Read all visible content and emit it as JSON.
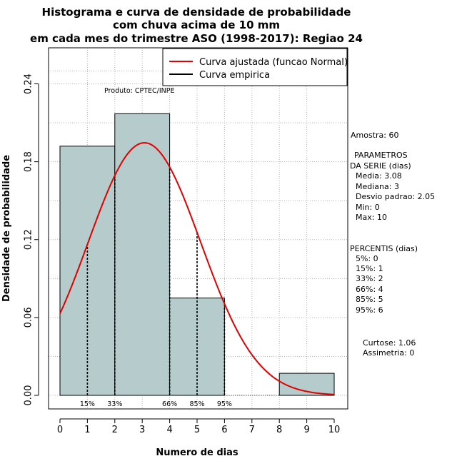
{
  "chart_data": {
    "type": "bar",
    "title": [
      "Histograma e curva de densidade de probabilidade",
      "com chuva acima de 10 mm",
      "em cada mes do trimestre ASO (1998-2017): Regiao 24"
    ],
    "xlabel": "Numero de dias",
    "ylabel": "Densidade de probabilidade",
    "xlim": [
      0,
      10
    ],
    "ylim": [
      0,
      0.26
    ],
    "x_ticks": [
      "0",
      "1",
      "2",
      "3",
      "4",
      "5",
      "6",
      "7",
      "8",
      "9",
      "10"
    ],
    "y_ticks": [
      "0.00",
      "0.06",
      "0.12",
      "0.18",
      "0.24"
    ],
    "histogram": [
      {
        "from": 0,
        "to": 2,
        "density": 0.192
      },
      {
        "from": 2,
        "to": 4,
        "density": 0.217
      },
      {
        "from": 4,
        "to": 6,
        "density": 0.075
      },
      {
        "from": 6,
        "to": 8,
        "density": 0.0
      },
      {
        "from": 8,
        "to": 10,
        "density": 0.017
      }
    ],
    "normal_fit": {
      "mean": 3.08,
      "sd": 2.05
    },
    "percentile_markers": [
      {
        "x": 1,
        "label": "15%"
      },
      {
        "x": 2,
        "label": "33%"
      },
      {
        "x": 4,
        "label": "66%"
      },
      {
        "x": 5,
        "label": "85%"
      },
      {
        "x": 6,
        "label": "95%"
      }
    ],
    "legend": [
      {
        "label": "Curva ajustada (funcao Normal)",
        "color": "#e00000"
      },
      {
        "label": "Curva empirica",
        "color": "#000000"
      }
    ],
    "annotation": "Produto: CPTEC/INPE"
  },
  "colors": {
    "bar_fill": "#b6cccc",
    "fit_curve": "#e00000",
    "grid": "#b3b3b3"
  },
  "stats": {
    "lines": [
      "Amostra: 60",
      "PARAMETROS",
      "DA SERIE (dias)",
      "Media: 3.08",
      "Mediana: 3",
      "Desvio padrao: 2.05",
      "Min: 0",
      "Max: 10",
      "PERCENTIS (dias)",
      "5%: 0",
      "15%: 1",
      "33%: 2",
      "66%: 4",
      "85%: 5",
      "95%: 6",
      "Curtose: 1.06",
      "Assimetria: 0"
    ]
  }
}
